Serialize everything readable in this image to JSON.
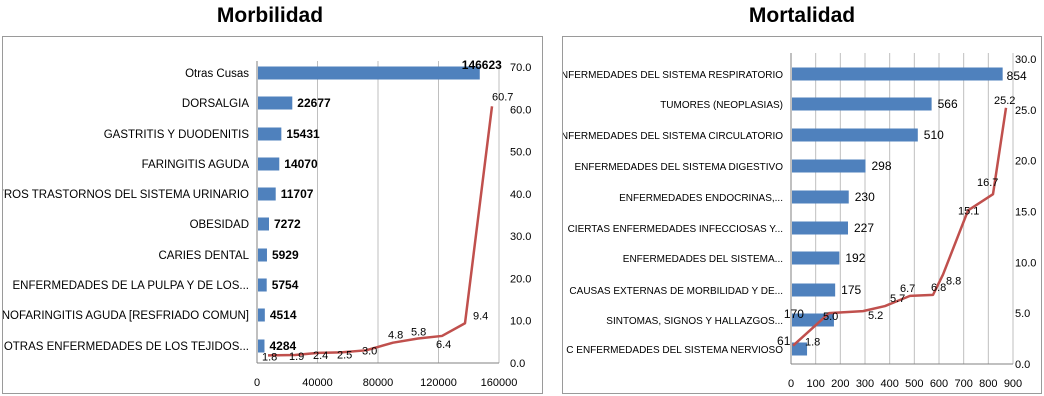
{
  "chart_data": [
    {
      "type": "bar",
      "orientation": "horizontal",
      "title": "Morbilidad",
      "categories": [
        "Otras Cusas",
        "DORSALGIA",
        "GASTRITIS Y DUODENITIS",
        "FARINGITIS AGUDA",
        "OTROS TRASTORNOS DEL SISTEMA URINARIO",
        "OBESIDAD",
        "CARIES DENTAL",
        "ENFERMEDADES DE LA PULPA Y DE LOS...",
        "RINOFARINGITIS AGUDA [RESFRIADO COMUN]",
        "OTRAS ENFERMEDADES DE LOS TEJIDOS..."
      ],
      "values": [
        146623,
        22677,
        15431,
        14070,
        11707,
        7272,
        5929,
        5754,
        4514,
        4284
      ],
      "value_labels": [
        "146623",
        "22677",
        "15431",
        "14070",
        "11707",
        "7272",
        "5929",
        "5754",
        "4514",
        "4284"
      ],
      "xlim": [
        0,
        160000
      ],
      "xticks": [
        "0",
        "40000",
        "80000",
        "120000",
        "160000"
      ],
      "secondary_axis": {
        "ylim": [
          0,
          70
        ],
        "ticks": [
          "0.0",
          "10.0",
          "20.0",
          "30.0",
          "40.0",
          "50.0",
          "60.0",
          "70.0"
        ]
      },
      "line": {
        "values": [
          1.8,
          1.9,
          2.4,
          2.5,
          3.0,
          4.8,
          5.8,
          6.4,
          9.4,
          60.7
        ],
        "labels": [
          "1.8",
          "1.9",
          "2.4",
          "2.5",
          "3.0",
          "4.8",
          "5.8",
          "6.4",
          "9.4",
          "60.7"
        ]
      },
      "grid": true,
      "colors": {
        "bar": "#4F81BD",
        "line": "#C0504D"
      }
    },
    {
      "type": "bar",
      "orientation": "horizontal",
      "title": "Mortalidad",
      "categories": [
        "ENFERMEDADES DEL SISTEMA RESPIRATORIO",
        "TUMORES (NEOPLASIAS)",
        "ENFERMEDADES DEL SISTEMA CIRCULATORIO",
        "ENFERMEDADES DEL SISTEMA DIGESTIVO",
        "ENFERMEDADES ENDOCRINAS,...",
        "CIERTAS ENFERMEDADES INFECCIOSAS Y...",
        "ENFERMEDADES DEL SISTEMA...",
        "CAUSAS EXTERNAS DE MORBILIDAD Y DE...",
        "SINTOMAS, SIGNOS Y HALLAZGOS...",
        "C ENFERMEDADES DEL SISTEMA NERVIOSO"
      ],
      "values": [
        854,
        566,
        510,
        298,
        230,
        227,
        192,
        175,
        170,
        61
      ],
      "value_labels": [
        "854",
        "566",
        "510",
        "298",
        "230",
        "227",
        "192",
        "175",
        "170",
        "61"
      ],
      "xlim": [
        0,
        900
      ],
      "xticks": [
        "0",
        "100",
        "200",
        "300",
        "400",
        "500",
        "600",
        "700",
        "800",
        "900"
      ],
      "secondary_axis": {
        "ylim": [
          0,
          30
        ],
        "ticks": [
          "0.0",
          "5.0",
          "10.0",
          "15.0",
          "20.0",
          "25.0",
          "30.0"
        ]
      },
      "line": {
        "values": [
          1.8,
          5.0,
          5.2,
          5.7,
          6.7,
          6.8,
          8.8,
          15.1,
          16.7,
          25.2
        ],
        "labels": [
          "1.8",
          "5.0",
          "5.2",
          "5.7",
          "6.7",
          "6.8",
          "8.8",
          "15.1",
          "16.7",
          "25.2"
        ]
      },
      "grid": true,
      "colors": {
        "bar": "#4F81BD",
        "line": "#C0504D"
      }
    }
  ]
}
